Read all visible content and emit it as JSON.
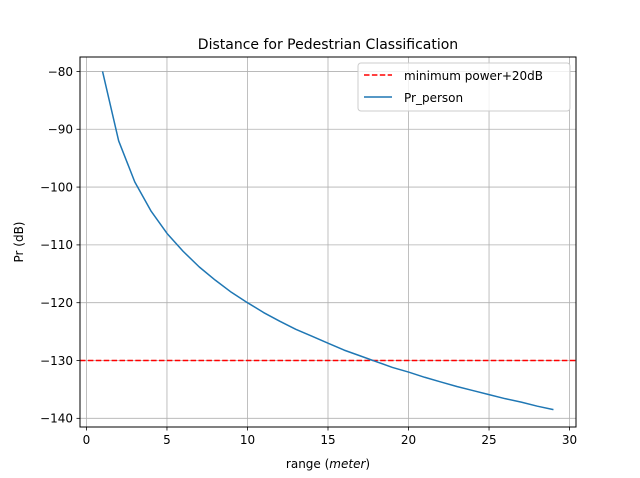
{
  "chart_data": {
    "type": "line",
    "title": "Distance for Pedestrian Classification",
    "xlabel_prefix": "range (",
    "xlabel_italic": "meter",
    "xlabel_suffix": ")",
    "ylabel": "Pr (dB)",
    "xlim": [
      -0.4,
      30.4
    ],
    "ylim": [
      -141.5,
      -77.5
    ],
    "xticks": [
      0,
      5,
      10,
      15,
      20,
      25,
      30
    ],
    "yticks": [
      -80,
      -90,
      -100,
      -110,
      -120,
      -130,
      -140
    ],
    "grid": true,
    "legend_position": "top-right",
    "series": [
      {
        "name": "minimum power+20dB",
        "color": "#ff0000",
        "style": "dashed",
        "kind": "hline",
        "y": -130
      },
      {
        "name": "Pr_person",
        "color": "#1f77b4",
        "style": "solid",
        "kind": "line",
        "x": [
          1,
          2,
          3,
          4,
          5,
          6,
          7,
          8,
          9,
          10,
          11,
          12,
          13,
          14,
          15,
          16,
          17,
          18,
          19,
          20,
          21,
          22,
          23,
          24,
          25,
          26,
          27,
          28,
          29
        ],
        "y": [
          -80.0,
          -92.0,
          -99.1,
          -104.1,
          -108.0,
          -111.1,
          -113.8,
          -116.1,
          -118.2,
          -120.0,
          -121.7,
          -123.2,
          -124.6,
          -125.8,
          -127.0,
          -128.2,
          -129.2,
          -130.2,
          -131.2,
          -132.0,
          -132.9,
          -133.7,
          -134.5,
          -135.2,
          -135.9,
          -136.6,
          -137.2,
          -137.9,
          -138.5
        ]
      }
    ]
  }
}
